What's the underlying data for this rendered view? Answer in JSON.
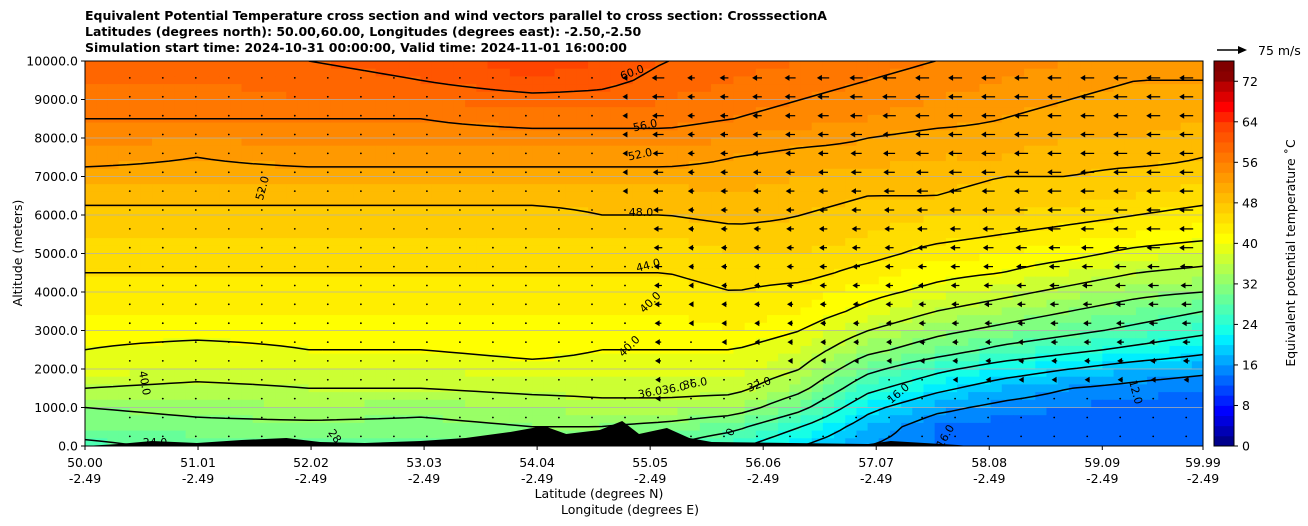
{
  "title_lines": [
    "Equivalent Potential Temperature cross section and wind vectors parallel to cross section: CrosssectionA",
    "Latitudes (degrees north): 50.00,60.00, Longitudes (degrees east): -2.50,-2.50",
    "Simulation start time: 2024-10-31 00:00:00, Valid time: 2024-11-01 16:00:00"
  ],
  "chart_data": {
    "type": "heatmap",
    "subtype": "filled contour cross-section with contour lines and wind vectors",
    "title": "Equivalent Potential Temperature cross section and wind vectors parallel to cross section: CrosssectionA",
    "xlabel_1": "Latitude (degrees N)",
    "xlabel_2": "Longitude (degrees E)",
    "ylabel": "Altitude (meters)",
    "xlim": [
      50.0,
      59.99
    ],
    "ylim": [
      0,
      10000
    ],
    "x_ticks": [
      {
        "value": 50.0,
        "lat": "50.00",
        "lon": "-2.49"
      },
      {
        "value": 51.01,
        "lat": "51.01",
        "lon": "-2.49"
      },
      {
        "value": 52.02,
        "lat": "52.02",
        "lon": "-2.49"
      },
      {
        "value": 53.03,
        "lat": "53.03",
        "lon": "-2.49"
      },
      {
        "value": 54.04,
        "lat": "54.04",
        "lon": "-2.49"
      },
      {
        "value": 55.05,
        "lat": "55.05",
        "lon": "-2.49"
      },
      {
        "value": 56.06,
        "lat": "56.06",
        "lon": "-2.49"
      },
      {
        "value": 57.07,
        "lat": "57.07",
        "lon": "-2.49"
      },
      {
        "value": 58.08,
        "lat": "58.08",
        "lon": "-2.49"
      },
      {
        "value": 59.09,
        "lat": "59.09",
        "lon": "-2.49"
      },
      {
        "value": 59.99,
        "lat": "59.99",
        "lon": "-2.49"
      }
    ],
    "y_ticks": [
      {
        "value": 0,
        "label": "0.0"
      },
      {
        "value": 1000,
        "label": "1000.0"
      },
      {
        "value": 2000,
        "label": "2000.0"
      },
      {
        "value": 3000,
        "label": "3000.0"
      },
      {
        "value": 4000,
        "label": "4000.0"
      },
      {
        "value": 5000,
        "label": "5000.0"
      },
      {
        "value": 6000,
        "label": "6000.0"
      },
      {
        "value": 7000,
        "label": "7000.0"
      },
      {
        "value": 8000,
        "label": "8000.0"
      },
      {
        "value": 9000,
        "label": "9000.0"
      },
      {
        "value": 10000,
        "label": "10000.0"
      }
    ],
    "grid": "horizontal",
    "colorbar": {
      "label": "Equivalent potential temperature ˚C",
      "range": [
        0,
        76
      ],
      "step": 2,
      "ticks": [
        0,
        8,
        16,
        24,
        32,
        40,
        48,
        56,
        64,
        72
      ],
      "colors": [
        "#00008b",
        "#0000b4",
        "#0000dc",
        "#0000ff",
        "#0022ff",
        "#0044ff",
        "#0066ff",
        "#0088ff",
        "#00aaff",
        "#00ccff",
        "#00eeff",
        "#16ffe6",
        "#33ffcc",
        "#4dffb3",
        "#66ff99",
        "#80ff80",
        "#99ff66",
        "#b3ff4d",
        "#ccff33",
        "#e6ff16",
        "#ffff00",
        "#ffee00",
        "#ffdd00",
        "#ffcc00",
        "#ffbb00",
        "#ffaa00",
        "#ff9900",
        "#ff8800",
        "#ff7700",
        "#ff6600",
        "#ff5500",
        "#ff4400",
        "#ff2200",
        "#ff0000",
        "#dd0000",
        "#bb0000",
        "#8b0000",
        "#800000"
      ]
    },
    "theta_e_field": {
      "columns_lat": [
        50.0,
        51.0,
        52.0,
        53.0,
        54.0,
        54.6,
        55.2,
        55.8,
        56.4,
        57.0,
        57.6,
        58.2,
        58.8,
        59.4,
        59.99
      ],
      "levels_m": [
        0,
        500,
        1000,
        1500,
        2000,
        2500,
        3000,
        3500,
        4000,
        4500,
        5000,
        5500,
        6000,
        6500,
        7000,
        7500,
        8000,
        8500,
        9000,
        9500,
        10000
      ],
      "rows": [
        [
          27,
          29,
          29,
          29,
          29,
          29,
          28,
          25,
          20,
          16,
          14,
          13,
          12,
          12,
          12
        ],
        [
          30,
          31,
          31,
          31,
          32,
          32,
          31,
          29,
          24,
          18,
          14,
          13,
          12,
          12,
          12
        ],
        [
          32,
          33,
          34,
          33,
          34,
          35,
          35,
          34,
          29,
          21,
          17,
          15,
          14,
          13,
          13
        ],
        [
          36,
          35,
          36,
          36,
          37,
          37,
          37,
          37,
          33,
          25,
          21,
          18,
          16,
          15,
          14
        ],
        [
          39,
          38,
          38,
          38,
          39,
          39,
          39,
          39,
          36,
          29,
          25,
          22,
          20,
          18,
          17
        ],
        [
          40,
          39,
          40,
          40,
          41,
          40,
          40,
          40,
          38,
          33,
          30,
          27,
          25,
          23,
          21
        ],
        [
          41,
          41,
          41,
          41,
          41,
          41,
          41,
          42,
          40,
          36,
          33,
          31,
          29,
          27,
          25
        ],
        [
          42,
          42,
          42,
          42,
          42,
          42,
          42,
          43,
          42,
          39,
          36,
          34,
          32,
          30,
          28
        ],
        [
          43,
          43,
          43,
          43,
          43,
          43,
          43,
          44,
          43,
          41,
          39,
          37,
          35,
          33,
          32
        ],
        [
          44,
          44,
          44,
          44,
          44,
          44,
          44,
          45,
          45,
          43,
          41,
          40,
          38,
          36,
          35
        ],
        [
          45,
          45,
          45,
          45,
          45,
          45,
          45,
          46,
          46,
          45,
          43,
          42,
          41,
          39,
          38
        ],
        [
          46,
          46,
          46,
          46,
          46,
          46,
          46,
          47,
          47,
          46,
          45,
          44,
          43,
          42,
          41
        ],
        [
          47,
          47,
          47,
          47,
          47,
          48,
          48,
          49,
          48,
          47,
          46,
          46,
          45,
          44,
          43
        ],
        [
          49,
          49,
          49,
          49,
          49,
          49,
          49,
          50,
          49,
          48,
          48,
          47,
          47,
          46,
          45
        ],
        [
          51,
          51,
          51,
          51,
          51,
          51,
          51,
          51,
          50,
          49,
          49,
          48,
          48,
          47,
          47
        ],
        [
          53,
          52,
          53,
          53,
          53,
          53,
          53,
          52,
          51,
          51,
          50,
          50,
          49,
          49,
          48
        ],
        [
          55,
          54,
          55,
          55,
          55,
          55,
          55,
          54,
          53,
          52,
          51,
          51,
          50,
          50,
          49
        ],
        [
          56,
          56,
          56,
          56,
          57,
          57,
          57,
          56,
          55,
          54,
          53,
          52,
          51,
          51,
          50
        ],
        [
          57,
          57,
          58,
          58,
          59,
          59,
          58,
          57,
          56,
          55,
          54,
          53,
          52,
          51,
          51
        ],
        [
          58,
          58,
          59,
          60,
          62,
          61,
          59,
          58,
          57,
          56,
          55,
          54,
          53,
          52,
          52
        ],
        [
          59,
          59,
          60,
          61,
          63,
          62,
          60,
          59,
          58,
          57,
          56,
          55,
          54,
          53,
          52
        ]
      ]
    },
    "contour_levels": [
      12,
      16,
      20,
      24,
      28,
      32,
      36,
      40,
      44,
      48,
      52,
      56,
      60
    ],
    "contour_labels": [
      "60.0",
      "56.0",
      "52.0",
      "52.0",
      "48.0",
      "44.0",
      "40.0",
      "40.0",
      "40.0",
      "36.036.0",
      "36.0",
      "32.0",
      "16.0",
      "12.0",
      "16.0",
      "24.0",
      "28",
      "0"
    ],
    "wind_reference": {
      "speed": 75,
      "label": "75 m/s"
    },
    "wind_description": "Leftward (southward) arrows strongest in upper levels north of 55 N; near-zero dots in lower levels and south of 54 N",
    "terrain": "black orography silhouette along the surface between 50.3 N and 57.8 N"
  }
}
